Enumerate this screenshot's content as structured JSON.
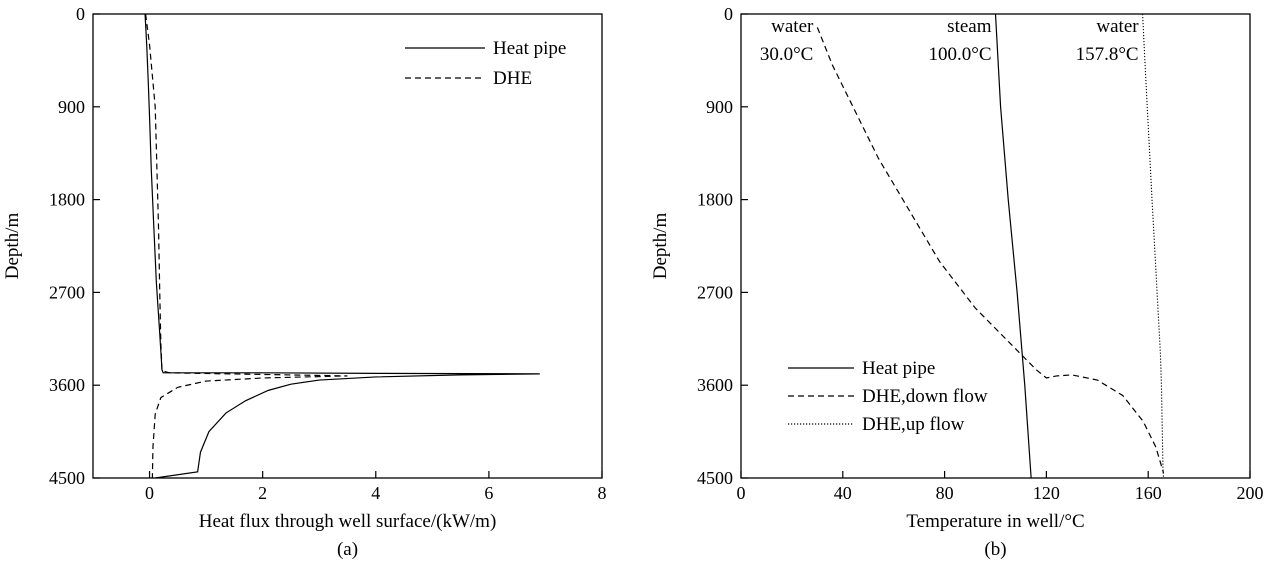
{
  "chart_data": [
    {
      "type": "line",
      "panel_label": "(a)",
      "xlabel": "Heat flux through well surface/(kW/m)",
      "ylabel": "Depth/m",
      "xlim": [
        -1,
        8
      ],
      "ylim": [
        0,
        4500
      ],
      "y_inverted": true,
      "xticks": [
        "0",
        "2",
        "4",
        "6",
        "8"
      ],
      "yticks": [
        "0",
        "900",
        "1800",
        "2700",
        "3600",
        "4500"
      ],
      "grid": false,
      "legend_position": "top-right",
      "series": [
        {
          "name": "Heat pipe",
          "style": "solid",
          "points": [
            [
              -0.08,
              0
            ],
            [
              -0.05,
              300
            ],
            [
              -0.02,
              700
            ],
            [
              0.0,
              1000
            ],
            [
              0.03,
              1500
            ],
            [
              0.07,
              2000
            ],
            [
              0.12,
              2600
            ],
            [
              0.18,
              3100
            ],
            [
              0.22,
              3450
            ],
            [
              0.24,
              3480
            ],
            [
              2.0,
              3480
            ],
            [
              4.0,
              3485
            ],
            [
              6.9,
              3490
            ],
            [
              5.5,
              3500
            ],
            [
              4.0,
              3520
            ],
            [
              3.0,
              3550
            ],
            [
              2.5,
              3590
            ],
            [
              2.1,
              3650
            ],
            [
              1.7,
              3750
            ],
            [
              1.35,
              3870
            ],
            [
              1.05,
              4050
            ],
            [
              0.9,
              4250
            ],
            [
              0.85,
              4440
            ],
            [
              0.1,
              4500
            ]
          ]
        },
        {
          "name": "DHE",
          "style": "dashed",
          "points": [
            [
              -0.07,
              0
            ],
            [
              0.0,
              300
            ],
            [
              0.05,
              600
            ],
            [
              0.1,
              900
            ],
            [
              0.13,
              1500
            ],
            [
              0.16,
              2100
            ],
            [
              0.18,
              2700
            ],
            [
              0.2,
              3200
            ],
            [
              0.22,
              3460
            ],
            [
              0.35,
              3480
            ],
            [
              3.5,
              3510
            ],
            [
              2.0,
              3530
            ],
            [
              1.0,
              3560
            ],
            [
              0.5,
              3620
            ],
            [
              0.2,
              3720
            ],
            [
              0.1,
              3880
            ],
            [
              0.06,
              4200
            ],
            [
              0.05,
              4500
            ]
          ]
        }
      ]
    },
    {
      "type": "line",
      "panel_label": "(b)",
      "xlabel": "Temperature in well/°C",
      "ylabel": "Depth/m",
      "xlim": [
        0,
        200
      ],
      "ylim": [
        0,
        4500
      ],
      "y_inverted": true,
      "xticks": [
        "0",
        "40",
        "80",
        "120",
        "160",
        "200"
      ],
      "yticks": [
        "0",
        "900",
        "1800",
        "2700",
        "3600",
        "4500"
      ],
      "grid": false,
      "legend_position": "bottom-left",
      "annotations": [
        {
          "line1": "water",
          "line2": "30.0°C",
          "x": 30.0,
          "y": 0
        },
        {
          "line1": "steam",
          "line2": "100.0°C",
          "x": 100.0,
          "y": 0
        },
        {
          "line1": "water",
          "line2": "157.8°C",
          "x": 157.8,
          "y": 0
        }
      ],
      "series": [
        {
          "name": "Heat pipe",
          "style": "solid",
          "points": [
            [
              100,
              0
            ],
            [
              102,
              900
            ],
            [
              105,
              1800
            ],
            [
              108.5,
              2700
            ],
            [
              111.5,
              3600
            ],
            [
              114,
              4500
            ]
          ]
        },
        {
          "name": "DHE,down flow",
          "style": "dashed",
          "points": [
            [
              30,
              130
            ],
            [
              36,
              500
            ],
            [
              44,
              900
            ],
            [
              54,
              1400
            ],
            [
              66,
              1900
            ],
            [
              78,
              2400
            ],
            [
              92,
              2850
            ],
            [
              106,
              3200
            ],
            [
              116,
              3450
            ],
            [
              120,
              3530
            ],
            [
              124,
              3510
            ],
            [
              130,
              3500
            ],
            [
              140,
              3550
            ],
            [
              150,
              3700
            ],
            [
              158,
              3950
            ],
            [
              163,
              4200
            ],
            [
              166,
              4450
            ]
          ]
        },
        {
          "name": "DHE,up flow",
          "style": "dotted",
          "points": [
            [
              157.8,
              0
            ],
            [
              159,
              600
            ],
            [
              161.5,
              1800
            ],
            [
              163.5,
              2700
            ],
            [
              164.8,
              3300
            ],
            [
              165.2,
              3600
            ],
            [
              165.8,
              4400
            ],
            [
              166,
              4500
            ]
          ]
        }
      ]
    }
  ]
}
